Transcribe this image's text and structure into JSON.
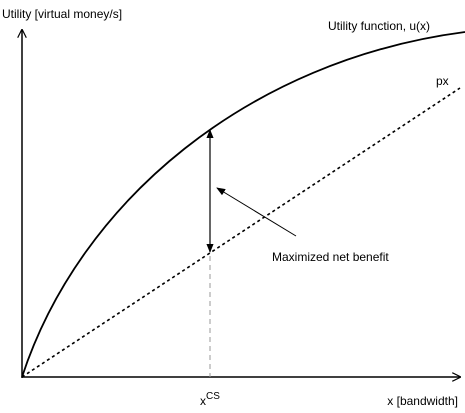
{
  "axes": {
    "y_label": "Utility [virtual money/s]",
    "x_label": "x [bandwidth]"
  },
  "curves": {
    "utility": "Utility function, u(x)",
    "price": "px"
  },
  "annotation": "Maximized net benefit",
  "marker": {
    "base": "x",
    "superscript": "CS"
  }
}
